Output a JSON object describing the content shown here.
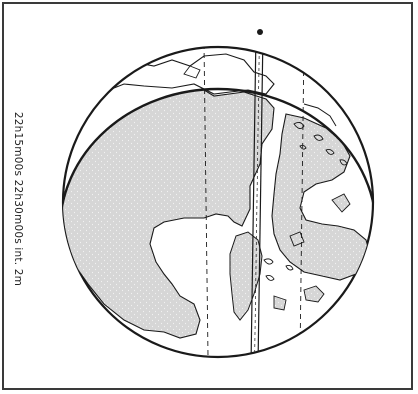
{
  "caption": "22h15m00s  22h30m00s  int. 2m",
  "colors": {
    "frame": "#3a3a3a",
    "land": "#d6d6d6",
    "ink": "#1a1a1a",
    "background": "#ffffff"
  },
  "icons": [
    "globe-outline",
    "illuminated-cap",
    "coastline",
    "meridian-dashed",
    "eclipse-track"
  ]
}
